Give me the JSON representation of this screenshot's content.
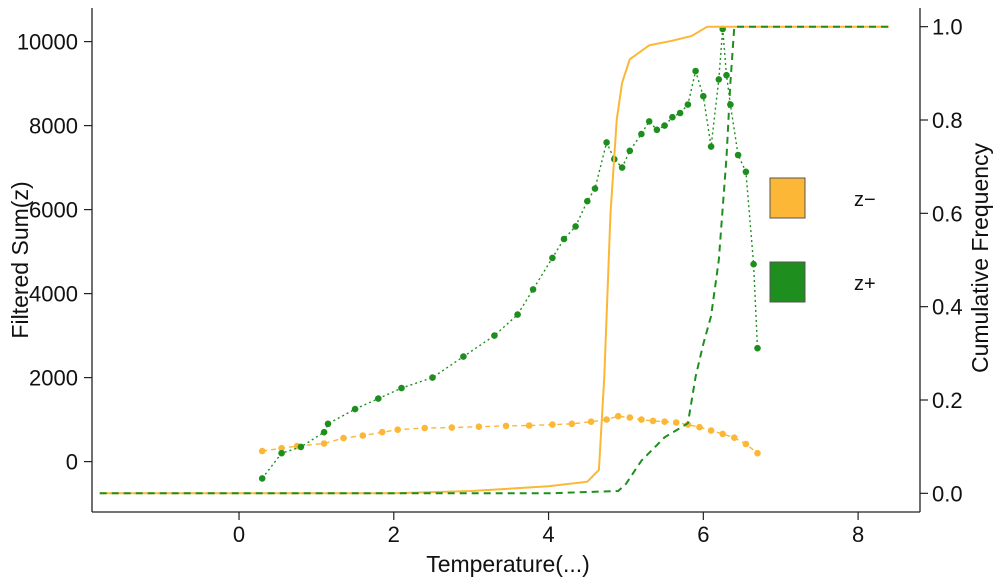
{
  "chart_data": {
    "type": "line",
    "xlabel": "Temperature(...)",
    "ylabel_left": "Filtered Sum(z)",
    "ylabel_right": "Cumulative Frequency",
    "xlim": [
      -1.9,
      8.8
    ],
    "ylim_left": [
      -1200,
      10800
    ],
    "ylim_right": [
      -0.04,
      1.04
    ],
    "x_ticks": [
      "0",
      "2",
      "4",
      "6",
      "8"
    ],
    "y_left_ticks": [
      "0",
      "2000",
      "4000",
      "6000",
      "8000",
      "10000"
    ],
    "y_right_ticks": [
      "0.0",
      "0.2",
      "0.4",
      "0.6",
      "0.8",
      "1.0"
    ],
    "grid": false,
    "legend": {
      "placement": "right",
      "items": [
        {
          "label": "z−",
          "color": "#FBB735"
        },
        {
          "label": "z+",
          "color": "#1E8F1E"
        }
      ]
    },
    "series": [
      {
        "name": "z−",
        "kind": "filtered_sum_points",
        "axis": "left",
        "color": "#FBB735",
        "x": [
          0.3,
          0.55,
          0.75,
          1.1,
          1.35,
          1.6,
          1.85,
          2.05,
          2.4,
          2.75,
          3.1,
          3.45,
          3.75,
          4.05,
          4.3,
          4.55,
          4.75,
          4.9,
          5.05,
          5.2,
          5.35,
          5.5,
          5.65,
          5.8,
          5.95,
          6.1,
          6.25,
          6.4,
          6.55,
          6.7
        ],
        "y": [
          250,
          320,
          370,
          430,
          560,
          620,
          700,
          760,
          800,
          810,
          830,
          850,
          860,
          880,
          900,
          950,
          1000,
          1080,
          1050,
          1000,
          970,
          950,
          930,
          880,
          820,
          740,
          660,
          570,
          420,
          200
        ]
      },
      {
        "name": "z+",
        "kind": "filtered_sum_points",
        "axis": "left",
        "color": "#1E8F1E",
        "x": [
          0.3,
          0.55,
          0.8,
          1.1,
          1.15,
          1.5,
          1.8,
          2.1,
          2.5,
          2.9,
          3.3,
          3.6,
          3.8,
          4.05,
          4.2,
          4.35,
          4.5,
          4.6,
          4.75,
          4.85,
          4.95,
          5.05,
          5.2,
          5.3,
          5.4,
          5.5,
          5.6,
          5.7,
          5.8,
          5.9,
          6.0,
          6.1,
          6.2,
          6.25,
          6.3,
          6.35,
          6.45,
          6.55,
          6.65,
          6.7
        ],
        "y": [
          -400,
          200,
          350,
          700,
          900,
          1250,
          1500,
          1750,
          2000,
          2500,
          3000,
          3500,
          4100,
          4850,
          5300,
          5600,
          6200,
          6500,
          7600,
          7200,
          7000,
          7400,
          7800,
          8100,
          7900,
          8000,
          8200,
          8300,
          8500,
          9300,
          8700,
          7500,
          9100,
          10300,
          9200,
          8500,
          7300,
          6900,
          4700,
          2700
        ]
      },
      {
        "name": "z−",
        "kind": "cumulative_frequency",
        "axis": "right",
        "color": "#FBB735",
        "x": [
          -1.8,
          0.0,
          1.0,
          2.0,
          3.0,
          4.0,
          4.5,
          4.65,
          4.72,
          4.8,
          4.88,
          4.95,
          5.05,
          5.3,
          5.6,
          5.85,
          6.05,
          6.2,
          8.4
        ],
        "y": [
          0.0,
          0.0,
          0.0,
          0.0,
          0.005,
          0.015,
          0.025,
          0.05,
          0.25,
          0.6,
          0.8,
          0.88,
          0.93,
          0.96,
          0.97,
          0.98,
          1.0,
          1.0,
          1.0
        ]
      },
      {
        "name": "z+",
        "kind": "cumulative_frequency",
        "axis": "right",
        "color": "#1E8F1E",
        "x": [
          -1.8,
          0.0,
          2.0,
          4.0,
          4.9,
          5.0,
          5.2,
          5.5,
          5.8,
          5.9,
          6.0,
          6.1,
          6.2,
          6.3,
          6.35,
          6.4,
          6.5,
          8.4
        ],
        "y": [
          0.0,
          0.0,
          0.0,
          0.0,
          0.005,
          0.02,
          0.07,
          0.12,
          0.15,
          0.25,
          0.32,
          0.38,
          0.5,
          0.72,
          0.88,
          1.0,
          1.0,
          1.0
        ]
      }
    ]
  }
}
